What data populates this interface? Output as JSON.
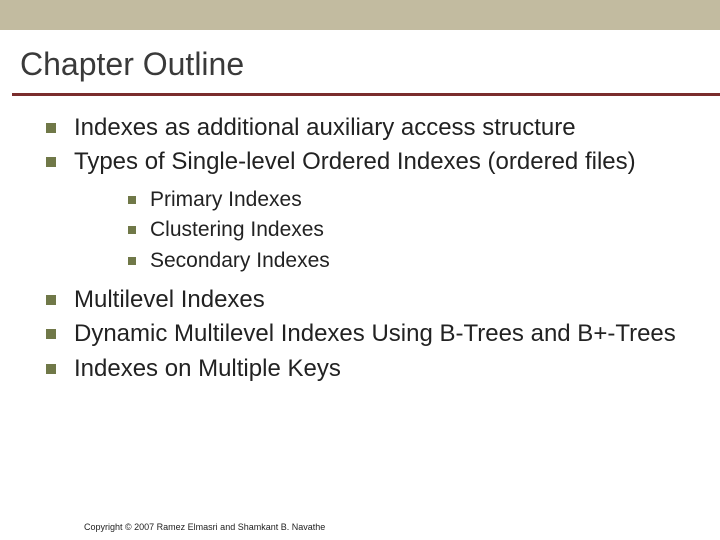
{
  "colors": {
    "top_bar": "#c2bba0",
    "rule": "#7a2d2d",
    "bullet": "#707848",
    "title_text": "#3a3a3a",
    "body_text": "#222222",
    "background": "#ffffff"
  },
  "title": "Chapter Outline",
  "bullets": [
    {
      "text": "Indexes as additional auxiliary access structure"
    },
    {
      "text": "Types of Single-level Ordered Indexes (ordered files)",
      "children": [
        {
          "text": "Primary Indexes"
        },
        {
          "text": "Clustering Indexes"
        },
        {
          "text": "Secondary Indexes"
        }
      ]
    },
    {
      "text": "Multilevel Indexes"
    },
    {
      "text": "Dynamic Multilevel Indexes Using B-Trees and B+-Trees"
    },
    {
      "text": "Indexes on Multiple Keys"
    }
  ],
  "copyright": "Copyright © 2007 Ramez Elmasri and Shamkant B. Navathe"
}
